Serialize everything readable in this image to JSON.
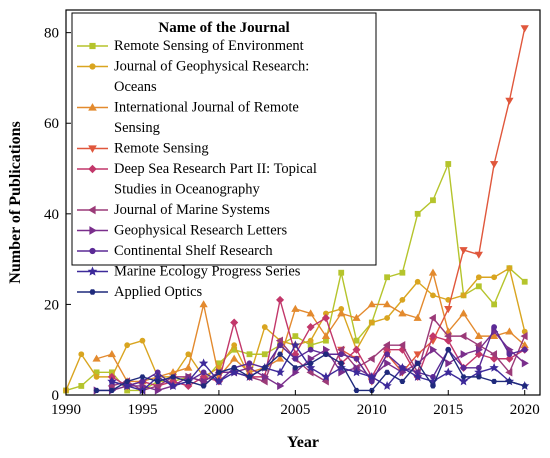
{
  "chart_data": {
    "type": "line",
    "xlabel": "Year",
    "ylabel": "Number of Publications",
    "xlim": [
      1990,
      2021
    ],
    "ylim": [
      0,
      85
    ],
    "xticks": [
      1990,
      1995,
      2000,
      2005,
      2010,
      2015,
      2020
    ],
    "yticks": [
      0,
      20,
      40,
      60,
      80
    ],
    "legend_title": "Name of the Journal",
    "legend_position": "top-left",
    "grid": false,
    "series": [
      {
        "name": "Remote Sensing of Environment",
        "color": "#b5c42c",
        "marker": "square",
        "x": [
          1990,
          1991,
          1992,
          1993,
          1994,
          1995,
          1996,
          1997,
          1998,
          1999,
          2000,
          2001,
          2002,
          2003,
          2004,
          2005,
          2006,
          2007,
          2008,
          2009,
          2010,
          2011,
          2012,
          2013,
          2014,
          2015,
          2016,
          2017,
          2018,
          2019,
          2020
        ],
        "values": [
          1,
          2,
          5,
          5,
          1,
          1,
          3,
          3,
          4,
          3,
          7,
          10,
          9,
          9,
          11,
          13,
          11,
          12,
          27,
          12,
          16,
          26,
          27,
          40,
          43,
          51,
          22,
          24,
          20,
          28,
          25
        ]
      },
      {
        "name": "Journal of Geophysical Research: Oceans",
        "color": "#d9a520",
        "marker": "circle",
        "x": [
          1990,
          1991,
          1992,
          1993,
          1994,
          1995,
          1996,
          1997,
          1998,
          1999,
          2000,
          2001,
          2002,
          2003,
          2004,
          2005,
          2006,
          2007,
          2008,
          2009,
          2010,
          2011,
          2012,
          2013,
          2014,
          2015,
          2016,
          2017,
          2018,
          2019,
          2020
        ],
        "values": [
          1,
          9,
          4,
          4,
          11,
          12,
          4,
          4,
          9,
          4,
          6,
          11,
          4,
          15,
          12,
          11,
          12,
          18,
          19,
          10,
          16,
          17,
          21,
          25,
          22,
          21,
          22,
          26,
          26,
          28,
          14
        ]
      },
      {
        "name": "International Journal of Remote Sensing",
        "color": "#e38a2e",
        "marker": "triangle-up",
        "x": [
          1992,
          1993,
          1994,
          1995,
          1996,
          1997,
          1998,
          1999,
          2000,
          2001,
          2002,
          2003,
          2004,
          2005,
          2006,
          2007,
          2008,
          2009,
          2010,
          2011,
          2012,
          2013,
          2014,
          2015,
          2016,
          2017,
          2018,
          2019,
          2020
        ],
        "values": [
          8,
          9,
          3,
          3,
          4,
          5,
          6,
          20,
          4,
          8,
          5,
          6,
          8,
          19,
          18,
          13,
          18,
          17,
          20,
          20,
          18,
          17,
          27,
          14,
          18,
          13,
          13,
          14,
          11
        ]
      },
      {
        "name": "Remote Sensing",
        "color": "#e0573c",
        "marker": "triangle-down",
        "x": [
          2008,
          2009,
          2010,
          2011,
          2012,
          2013,
          2014,
          2015,
          2016,
          2017,
          2018,
          2019,
          2020
        ],
        "values": [
          10,
          8,
          3,
          9,
          5,
          9,
          12,
          19,
          32,
          31,
          51,
          65,
          81
        ]
      },
      {
        "name": "Deep Sea Research Part II: Topical Studies in Oceanography",
        "color": "#c2376a",
        "marker": "diamond",
        "x": [
          1993,
          1994,
          1995,
          1996,
          1997,
          1998,
          1999,
          2000,
          2001,
          2002,
          2003,
          2004,
          2005,
          2006,
          2007,
          2008,
          2009,
          2010,
          2011,
          2012,
          2013,
          2014,
          2015,
          2016,
          2017,
          2018,
          2019,
          2020
        ],
        "values": [
          4,
          2,
          3,
          2,
          3,
          2,
          4,
          3,
          16,
          4,
          4,
          21,
          9,
          15,
          17,
          7,
          10,
          4,
          10,
          10,
          4,
          13,
          12,
          6,
          9,
          8,
          8,
          10
        ]
      },
      {
        "name": "Journal of Marine Systems",
        "color": "#9b3a78",
        "marker": "triangle-left",
        "x": [
          1993,
          1994,
          1995,
          1996,
          1997,
          1998,
          1999,
          2000,
          2001,
          2002,
          2003,
          2004,
          2005,
          2006,
          2007,
          2008,
          2009,
          2010,
          2011,
          2012,
          2013,
          2014,
          2015,
          2016,
          2017,
          2018,
          2019,
          2020
        ],
        "values": [
          2,
          3,
          1,
          2,
          4,
          4,
          3,
          5,
          5,
          4,
          3,
          12,
          8,
          5,
          3,
          10,
          6,
          8,
          11,
          11,
          5,
          17,
          13,
          13,
          11,
          9,
          5,
          13
        ]
      },
      {
        "name": "Geophysical Research Letters",
        "color": "#7a2e8c",
        "marker": "triangle-right",
        "x": [
          1992,
          1993,
          1994,
          1995,
          1996,
          1997,
          1998,
          1999,
          2000,
          2001,
          2002,
          2003,
          2004,
          2005,
          2006,
          2007,
          2008,
          2009,
          2010,
          2011,
          2012,
          2013,
          2014,
          2015,
          2016,
          2017,
          2018,
          2019,
          2020
        ],
        "values": [
          1,
          1,
          2,
          2,
          1,
          2,
          4,
          3,
          5,
          5,
          6,
          4,
          2,
          5,
          8,
          10,
          5,
          6,
          4,
          7,
          5,
          7,
          10,
          7,
          9,
          10,
          14,
          10,
          7
        ]
      },
      {
        "name": "Continental Shelf Research",
        "color": "#5b2a96",
        "marker": "circle",
        "x": [
          1993,
          1994,
          1995,
          1996,
          1997,
          1998,
          1999,
          2000,
          2001,
          2002,
          2003,
          2004,
          2005,
          2006,
          2007,
          2008,
          2009,
          2010,
          2011,
          2012,
          2013,
          2014,
          2015,
          2016,
          2017,
          2018,
          2019,
          2020
        ],
        "values": [
          3,
          2,
          3,
          5,
          2,
          3,
          5,
          3,
          6,
          7,
          6,
          11,
          8,
          10,
          9,
          9,
          8,
          3,
          9,
          6,
          5,
          4,
          10,
          6,
          6,
          15,
          9,
          10
        ]
      },
      {
        "name": "Marine Ecology Progress Series",
        "color": "#3d2a9a",
        "marker": "star",
        "x": [
          1993,
          1994,
          1995,
          1996,
          1997,
          1998,
          1999,
          2000,
          2001,
          2002,
          2003,
          2004,
          2005,
          2006,
          2007,
          2008,
          2009,
          2010,
          2011,
          2012,
          2013,
          2014,
          2015,
          2016,
          2017,
          2018,
          2019,
          2020
        ],
        "values": [
          3,
          2,
          1,
          4,
          2,
          3,
          7,
          3,
          5,
          4,
          6,
          5,
          11,
          6,
          4,
          6,
          5,
          4,
          2,
          6,
          4,
          3,
          5,
          3,
          5,
          6,
          3,
          2
        ]
      },
      {
        "name": "Applied Optics",
        "color": "#1f2a7c",
        "marker": "hexagon",
        "x": [
          1992,
          1993,
          1994,
          1995,
          1996,
          1997,
          1998,
          1999,
          2000,
          2001,
          2002,
          2003,
          2004,
          2005,
          2006,
          2007,
          2008,
          2009,
          2010,
          2011,
          2012,
          2013,
          2014,
          2015,
          2016,
          2017,
          2018,
          2019,
          2020
        ],
        "values": [
          1,
          1,
          3,
          4,
          3,
          4,
          3,
          2,
          5,
          6,
          4,
          6,
          9,
          6,
          7,
          9,
          7,
          1,
          1,
          5,
          3,
          7,
          2,
          10,
          4,
          4,
          3,
          3,
          2
        ]
      }
    ]
  }
}
